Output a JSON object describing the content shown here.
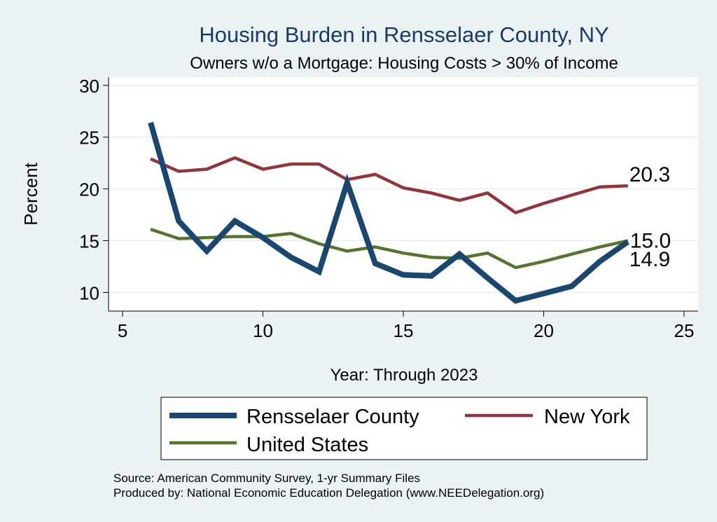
{
  "chart_data": {
    "type": "line",
    "title": "Housing Burden in Rensselaer County, NY",
    "subtitle": "Owners w/o a Mortgage: Housing Costs > 30% of Income",
    "xlabel": "Year: Through 2023",
    "ylabel": "Percent",
    "xlim": [
      4.5,
      25.5
    ],
    "ylim": [
      8.2,
      30.8
    ],
    "xticks": [
      5,
      10,
      15,
      20,
      25
    ],
    "yticks": [
      10,
      15,
      20,
      25,
      30
    ],
    "grid": true,
    "legend_position": "bottom",
    "series": [
      {
        "name": "Rensselaer County",
        "color": "#1a476f",
        "x": [
          6,
          7,
          8,
          9,
          10,
          11,
          12,
          13,
          14,
          15,
          16,
          17,
          18,
          19,
          20,
          21,
          22,
          23
        ],
        "y": [
          26.4,
          16.9,
          14.0,
          16.9,
          15.3,
          13.4,
          12.0,
          20.6,
          12.8,
          11.7,
          11.6,
          13.7,
          11.4,
          9.2,
          9.9,
          10.6,
          13.0,
          14.9
        ]
      },
      {
        "name": "New York",
        "color": "#90353b",
        "x": [
          6,
          7,
          8,
          9,
          10,
          11,
          12,
          13,
          14,
          15,
          16,
          17,
          18,
          19,
          20,
          21,
          22,
          23
        ],
        "y": [
          22.9,
          21.7,
          21.9,
          23.0,
          21.9,
          22.4,
          22.4,
          20.9,
          21.4,
          20.1,
          19.6,
          18.9,
          19.6,
          17.7,
          18.6,
          19.4,
          20.2,
          20.3
        ]
      },
      {
        "name": "United States",
        "color": "#55752f",
        "x": [
          6,
          7,
          8,
          9,
          10,
          11,
          12,
          13,
          14,
          15,
          16,
          17,
          18,
          19,
          20,
          21,
          22,
          23
        ],
        "y": [
          16.1,
          15.2,
          15.3,
          15.4,
          15.4,
          15.7,
          14.7,
          14.0,
          14.4,
          13.8,
          13.4,
          13.3,
          13.8,
          12.4,
          13.0,
          13.7,
          14.4,
          15.0
        ]
      }
    ],
    "annotations": [
      {
        "text": "20.3",
        "series": "New York",
        "x": 23,
        "y": 20.3
      },
      {
        "text": "15.0",
        "series": "United States",
        "x": 23,
        "y": 15.0
      },
      {
        "text": "14.9",
        "series": "Rensselaer County",
        "x": 23,
        "y": 14.9
      }
    ],
    "legend": {
      "entries": [
        "Rensselaer County",
        "New York",
        "United States"
      ]
    }
  },
  "notes": {
    "source": "Source: American Community Survey, 1-yr Summary Files",
    "produced_by": "Produced by: National Economic Education Delegation (www.NEEDelegation.org)"
  }
}
